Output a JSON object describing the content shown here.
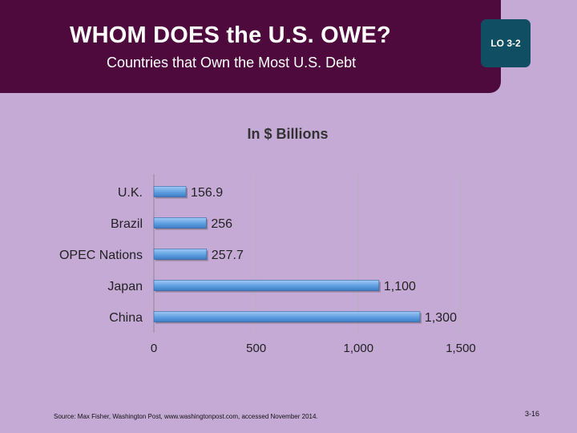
{
  "header": {
    "title": "WHOM DOES the U.S. OWE?",
    "subtitle": "Countries that Own the Most U.S. Debt",
    "lo_label": "LO 3-2"
  },
  "chart_data": {
    "type": "bar",
    "orientation": "horizontal",
    "title": "In $ Billions",
    "categories": [
      "U.K.",
      "Brazil",
      "OPEC Nations",
      "Japan",
      "China"
    ],
    "values": [
      156.9,
      256,
      257.7,
      1100,
      1300
    ],
    "value_labels": [
      "156.9",
      "256",
      "257.7",
      "1,100",
      "1,300"
    ],
    "xlim": [
      0,
      1500
    ],
    "xticks": [
      0,
      500,
      1000,
      1500
    ],
    "xtick_labels": [
      "0",
      "500",
      "1,000",
      "1,500"
    ],
    "grid": true,
    "legend": "none",
    "bar_color": "#5f9fe0"
  },
  "footer": {
    "source": "Source: Max Fisher, Washington Post, www.washingtonpost.com, accessed November 2014.",
    "page_number": "3-16"
  },
  "colors": {
    "background": "#c5aad6",
    "header": "#4e0a3d",
    "badge": "#0f4e63"
  }
}
